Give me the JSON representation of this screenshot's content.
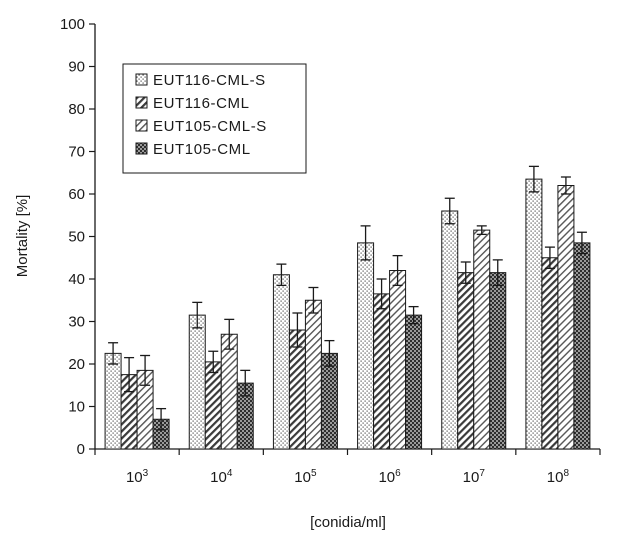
{
  "chart_data": {
    "type": "bar",
    "title": "",
    "xlabel": "[conidia/ml]",
    "ylabel": "Mortality [%]",
    "ylim": [
      0,
      100
    ],
    "yticks": [
      0,
      10,
      20,
      30,
      40,
      50,
      60,
      70,
      80,
      90,
      100
    ],
    "grid": false,
    "legend_position": "top-left",
    "categories": [
      {
        "base": "10",
        "exp": "3"
      },
      {
        "base": "10",
        "exp": "4"
      },
      {
        "base": "10",
        "exp": "5"
      },
      {
        "base": "10",
        "exp": "6"
      },
      {
        "base": "10",
        "exp": "7"
      },
      {
        "base": "10",
        "exp": "8"
      }
    ],
    "series": [
      {
        "name": "EUT116-CML-S",
        "values": [
          22.5,
          31.5,
          41,
          48.5,
          56,
          63.5
        ],
        "errors": [
          2.5,
          3,
          2.5,
          4,
          3,
          3
        ],
        "pattern": "dots"
      },
      {
        "name": "EUT116-CML",
        "values": [
          17.5,
          20.5,
          28,
          36.5,
          41.5,
          45
        ],
        "errors": [
          4,
          2.5,
          4,
          3.5,
          2.5,
          2.5
        ],
        "pattern": "diag"
      },
      {
        "name": "EUT105-CML-S",
        "values": [
          18.5,
          27,
          35,
          42,
          51.5,
          62
        ],
        "errors": [
          3.5,
          3.5,
          3,
          3.5,
          1,
          2
        ],
        "pattern": "diag-light"
      },
      {
        "name": "EUT105-CML",
        "values": [
          7,
          15.5,
          22.5,
          31.5,
          41.5,
          48.5
        ],
        "errors": [
          2.5,
          3,
          3,
          2,
          3,
          2.5
        ],
        "pattern": "checker"
      }
    ]
  }
}
